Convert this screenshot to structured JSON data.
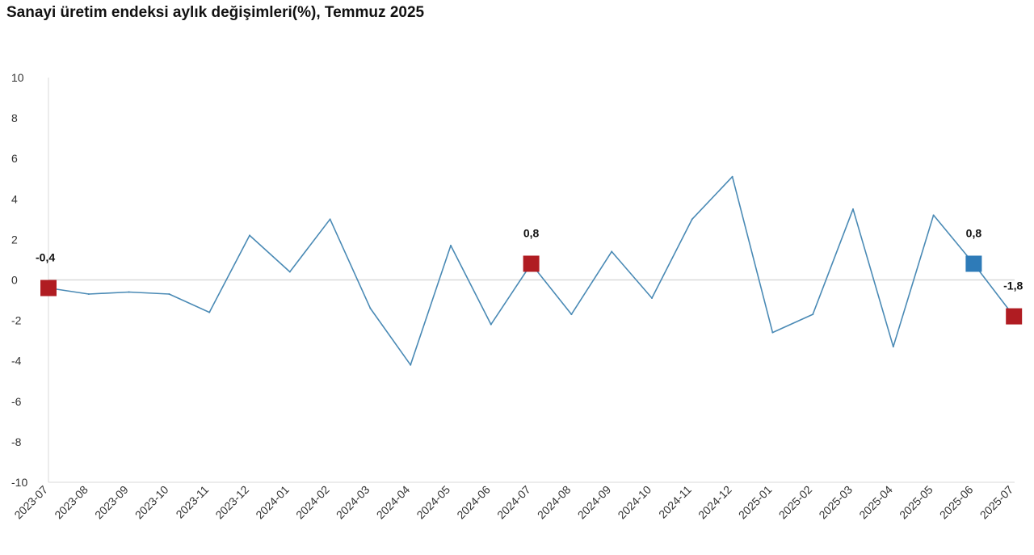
{
  "chart_data": {
    "type": "line",
    "title": "Sanayi üretim endeksi aylık değişimleri(%), Temmuz 2025",
    "xlabel": "",
    "ylabel": "",
    "ylim": [
      -10,
      10
    ],
    "yticks": [
      10,
      8,
      6,
      4,
      2,
      0,
      -2,
      -4,
      -6,
      -8,
      -10
    ],
    "grid": false,
    "categories": [
      "2023-07",
      "2023-08",
      "2023-09",
      "2023-10",
      "2023-11",
      "2023-12",
      "2024-01",
      "2024-02",
      "2024-03",
      "2024-04",
      "2024-05",
      "2024-06",
      "2024-07",
      "2024-08",
      "2024-09",
      "2024-10",
      "2024-11",
      "2024-12",
      "2025-01",
      "2025-02",
      "2025-03",
      "2025-04",
      "2025-05",
      "2025-06",
      "2025-07"
    ],
    "series": [
      {
        "values": [
          -0.4,
          -0.7,
          -0.6,
          -0.7,
          -1.6,
          2.2,
          0.4,
          3.0,
          -1.4,
          -4.2,
          1.7,
          -2.2,
          0.8,
          -1.7,
          1.4,
          -0.9,
          3.0,
          5.1,
          -2.6,
          -1.7,
          3.5,
          -3.3,
          3.2,
          0.8,
          -1.8
        ],
        "color": "#4a8ab5"
      }
    ],
    "highlights": [
      {
        "index": 0,
        "label": "-0,4",
        "color": "#b01c22"
      },
      {
        "index": 12,
        "label": "0,8",
        "color": "#b01c22"
      },
      {
        "index": 23,
        "label": "0,8",
        "color": "#2e7bb8"
      },
      {
        "index": 24,
        "label": "-1,8",
        "color": "#b01c22"
      }
    ],
    "colors": {
      "axis": "#d9d9d9",
      "zero_line": "#d9d9d9"
    }
  }
}
